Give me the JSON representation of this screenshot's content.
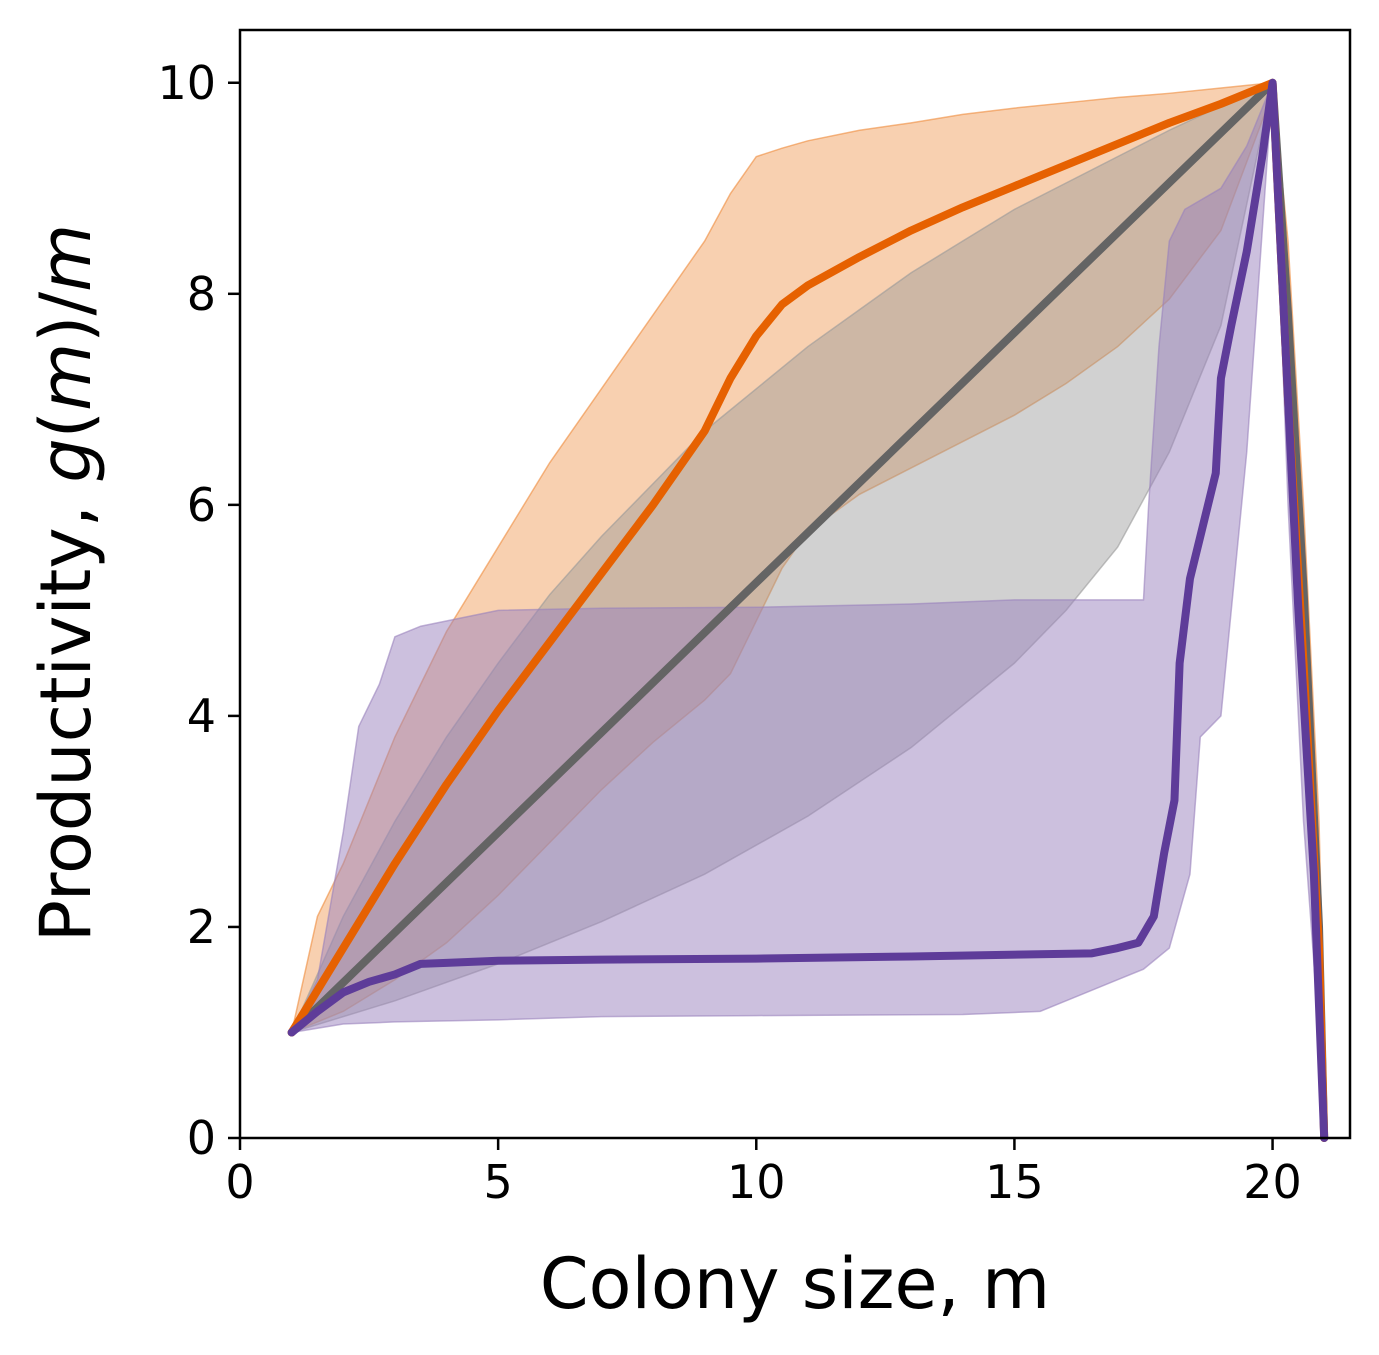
{
  "chart_data": {
    "type": "line",
    "xlabel": "Colony size, m",
    "ylabel": {
      "parts": [
        {
          "text": "Productivity, ",
          "italic": false
        },
        {
          "text": "g",
          "italic": true
        },
        {
          "text": "(",
          "italic": false
        },
        {
          "text": "m",
          "italic": true
        },
        {
          "text": ")/",
          "italic": false
        },
        {
          "text": "m",
          "italic": true
        }
      ]
    },
    "xlim": [
      0,
      21.5
    ],
    "ylim": [
      0,
      10.5
    ],
    "xticks": [
      0,
      5,
      10,
      15,
      20
    ],
    "xtick_labels": [
      "0",
      "5",
      "10",
      "15",
      "20"
    ],
    "yticks": [
      0,
      2,
      4,
      6,
      8,
      10
    ],
    "ytick_labels": [
      "0",
      "2",
      "4",
      "6",
      "8",
      "10"
    ],
    "grid": false,
    "legend": "none",
    "bands": [
      {
        "color": "#ee8a3a",
        "opacity": 0.4,
        "upper": [
          [
            1,
            1.0
          ],
          [
            1.5,
            2.1
          ],
          [
            2,
            2.6
          ],
          [
            2.5,
            3.2
          ],
          [
            3,
            3.8
          ],
          [
            3.5,
            4.3
          ],
          [
            4,
            4.8
          ],
          [
            5,
            5.6
          ],
          [
            6,
            6.4
          ],
          [
            7,
            7.1
          ],
          [
            8,
            7.8
          ],
          [
            9,
            8.5
          ],
          [
            9.5,
            8.95
          ],
          [
            10,
            9.3
          ],
          [
            10.5,
            9.38
          ],
          [
            11,
            9.45
          ],
          [
            12,
            9.55
          ],
          [
            13,
            9.62
          ],
          [
            14,
            9.7
          ],
          [
            15,
            9.76
          ],
          [
            16,
            9.81
          ],
          [
            17,
            9.86
          ],
          [
            18,
            9.9
          ],
          [
            19,
            9.95
          ],
          [
            20,
            10.0
          ],
          [
            20.3,
            8.5
          ],
          [
            20.6,
            6.0
          ],
          [
            20.9,
            3.0
          ],
          [
            21.0,
            1.0
          ]
        ],
        "lower": [
          [
            1,
            1.0
          ],
          [
            2,
            1.2
          ],
          [
            3,
            1.5
          ],
          [
            4,
            1.85
          ],
          [
            5,
            2.3
          ],
          [
            6,
            2.8
          ],
          [
            7,
            3.3
          ],
          [
            8,
            3.75
          ],
          [
            9,
            4.15
          ],
          [
            9.5,
            4.4
          ],
          [
            10,
            4.9
          ],
          [
            10.5,
            5.4
          ],
          [
            11,
            5.75
          ],
          [
            12,
            6.1
          ],
          [
            13,
            6.35
          ],
          [
            14,
            6.6
          ],
          [
            15,
            6.85
          ],
          [
            16,
            7.15
          ],
          [
            17,
            7.5
          ],
          [
            18,
            7.95
          ],
          [
            19,
            8.6
          ],
          [
            20,
            9.9
          ],
          [
            20.3,
            7.0
          ],
          [
            20.6,
            4.0
          ],
          [
            20.9,
            1.5
          ],
          [
            21.0,
            0
          ]
        ]
      },
      {
        "color": "#999999",
        "opacity": 0.45,
        "upper": [
          [
            1,
            1.0
          ],
          [
            2,
            2.1
          ],
          [
            3,
            3.0
          ],
          [
            4,
            3.8
          ],
          [
            5,
            4.5
          ],
          [
            6,
            5.15
          ],
          [
            7,
            5.7
          ],
          [
            8,
            6.2
          ],
          [
            9,
            6.7
          ],
          [
            10,
            7.1
          ],
          [
            11,
            7.5
          ],
          [
            12,
            7.85
          ],
          [
            13,
            8.2
          ],
          [
            14,
            8.5
          ],
          [
            15,
            8.8
          ],
          [
            16,
            9.05
          ],
          [
            17,
            9.3
          ],
          [
            18,
            9.55
          ],
          [
            19,
            9.78
          ],
          [
            20,
            10.0
          ]
        ],
        "lower": [
          [
            1,
            1.0
          ],
          [
            3,
            1.3
          ],
          [
            5,
            1.65
          ],
          [
            7,
            2.05
          ],
          [
            9,
            2.5
          ],
          [
            11,
            3.05
          ],
          [
            13,
            3.7
          ],
          [
            15,
            4.5
          ],
          [
            16,
            5.0
          ],
          [
            17,
            5.6
          ],
          [
            18,
            6.5
          ],
          [
            19,
            7.7
          ],
          [
            20,
            10.0
          ]
        ]
      },
      {
        "color": "#9a82bd",
        "opacity": 0.5,
        "upper": [
          [
            1,
            1.0
          ],
          [
            1.5,
            1.5
          ],
          [
            2,
            2.9
          ],
          [
            2.3,
            3.9
          ],
          [
            2.7,
            4.3
          ],
          [
            3,
            4.75
          ],
          [
            3.5,
            4.85
          ],
          [
            5,
            5.0
          ],
          [
            7,
            5.02
          ],
          [
            10,
            5.03
          ],
          [
            13,
            5.06
          ],
          [
            15,
            5.1
          ],
          [
            17.5,
            5.1
          ],
          [
            17.6,
            6.0
          ],
          [
            17.8,
            7.5
          ],
          [
            18.0,
            8.5
          ],
          [
            18.3,
            8.8
          ],
          [
            19,
            9.0
          ],
          [
            19.5,
            9.4
          ],
          [
            20,
            10.0
          ],
          [
            20.3,
            8.0
          ],
          [
            20.6,
            5.0
          ],
          [
            20.9,
            2.0
          ],
          [
            21.0,
            0
          ]
        ],
        "lower": [
          [
            1,
            1.0
          ],
          [
            2,
            1.08
          ],
          [
            3,
            1.1
          ],
          [
            5,
            1.12
          ],
          [
            7,
            1.15
          ],
          [
            10,
            1.16
          ],
          [
            14,
            1.17
          ],
          [
            15.5,
            1.2
          ],
          [
            16,
            1.3
          ],
          [
            17,
            1.5
          ],
          [
            17.5,
            1.6
          ],
          [
            18,
            1.8
          ],
          [
            18.4,
            2.5
          ],
          [
            18.6,
            3.8
          ],
          [
            19,
            4.0
          ],
          [
            19.5,
            6.5
          ],
          [
            20,
            10.0
          ],
          [
            20.3,
            6.0
          ],
          [
            20.6,
            3.0
          ],
          [
            20.9,
            1.0
          ],
          [
            21.0,
            0
          ]
        ]
      }
    ],
    "series": [
      {
        "color": "#646464",
        "width": 8,
        "points": [
          [
            1,
            1.0
          ],
          [
            20,
            10.0
          ],
          [
            20.3,
            7.8
          ],
          [
            20.6,
            5.2
          ],
          [
            20.9,
            2.0
          ],
          [
            21.0,
            0.0
          ]
        ]
      },
      {
        "color": "#e66101",
        "width": 8,
        "points": [
          [
            1,
            1.0
          ],
          [
            2,
            1.8
          ],
          [
            3,
            2.6
          ],
          [
            4,
            3.35
          ],
          [
            5,
            4.05
          ],
          [
            6,
            4.7
          ],
          [
            7,
            5.35
          ],
          [
            8,
            6.0
          ],
          [
            9,
            6.7
          ],
          [
            9.5,
            7.2
          ],
          [
            10,
            7.6
          ],
          [
            10.5,
            7.9
          ],
          [
            11,
            8.08
          ],
          [
            12,
            8.35
          ],
          [
            13,
            8.6
          ],
          [
            14,
            8.82
          ],
          [
            15,
            9.02
          ],
          [
            16,
            9.22
          ],
          [
            17,
            9.42
          ],
          [
            18,
            9.62
          ],
          [
            19,
            9.8
          ],
          [
            20,
            10.0
          ],
          [
            20.3,
            7.0
          ],
          [
            20.6,
            4.5
          ],
          [
            20.9,
            1.8
          ],
          [
            21.0,
            0.0
          ]
        ]
      },
      {
        "color": "#5e3c99",
        "width": 8,
        "points": [
          [
            1,
            1.0
          ],
          [
            1.5,
            1.2
          ],
          [
            2,
            1.38
          ],
          [
            2.5,
            1.48
          ],
          [
            3,
            1.55
          ],
          [
            3.5,
            1.65
          ],
          [
            4,
            1.66
          ],
          [
            5,
            1.68
          ],
          [
            7,
            1.69
          ],
          [
            10,
            1.7
          ],
          [
            13,
            1.72
          ],
          [
            16.5,
            1.75
          ],
          [
            17,
            1.8
          ],
          [
            17.4,
            1.85
          ],
          [
            17.7,
            2.1
          ],
          [
            17.9,
            2.7
          ],
          [
            18.1,
            3.2
          ],
          [
            18.2,
            4.5
          ],
          [
            18.4,
            5.3
          ],
          [
            18.6,
            5.7
          ],
          [
            18.9,
            6.3
          ],
          [
            19.0,
            7.2
          ],
          [
            19.2,
            7.7
          ],
          [
            19.5,
            8.4
          ],
          [
            19.8,
            9.3
          ],
          [
            20,
            10.0
          ],
          [
            20.2,
            8.0
          ],
          [
            20.5,
            5.0
          ],
          [
            20.8,
            2.5
          ],
          [
            21.0,
            0.0
          ]
        ]
      }
    ]
  }
}
